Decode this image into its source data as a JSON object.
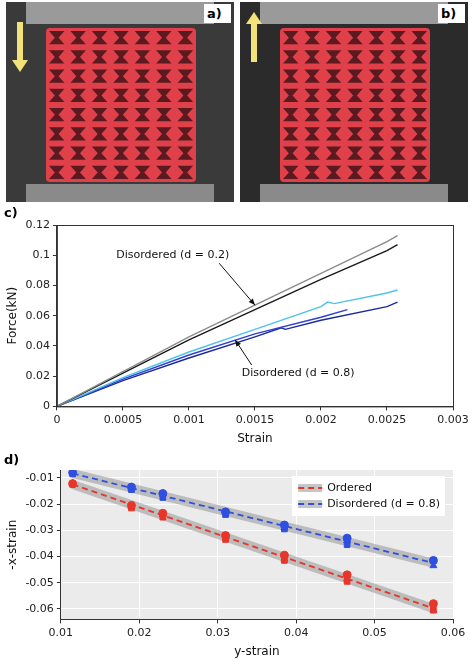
{
  "panels": [
    {
      "label": "a)",
      "arrow": "down"
    },
    {
      "label": "b)",
      "arrow": "up"
    }
  ],
  "chart_data": [
    {
      "type": "line",
      "panel_label": "c)",
      "x_label": "Strain",
      "y_label": "Force(kN)",
      "xlim": [
        0,
        0.003
      ],
      "xticks": [
        0,
        0.0005,
        0.001,
        0.0015,
        0.002,
        0.0025,
        0.003
      ],
      "ylim": [
        0,
        0.12
      ],
      "yticks": [
        0,
        0.02,
        0.04,
        0.06,
        0.08,
        0.1,
        0.12
      ],
      "grid": false,
      "series": [
        {
          "color": "#8c8c8c",
          "x": [
            0,
            0.0005,
            0.001,
            0.0015,
            0.002,
            0.0025,
            0.00258
          ],
          "values": [
            0,
            0.023,
            0.046,
            0.067,
            0.088,
            0.109,
            0.113
          ]
        },
        {
          "color": "#1a1a1a",
          "x": [
            0,
            0.0005,
            0.001,
            0.0015,
            0.002,
            0.0025,
            0.00258
          ],
          "values": [
            0,
            0.022,
            0.044,
            0.064,
            0.084,
            0.103,
            0.107
          ]
        },
        {
          "color": "#4fc3e8",
          "x": [
            0,
            0.0005,
            0.001,
            0.0015,
            0.002,
            0.00205,
            0.0021,
            0.0025,
            0.00258
          ],
          "values": [
            0,
            0.019,
            0.036,
            0.051,
            0.066,
            0.069,
            0.068,
            0.075,
            0.077
          ]
        },
        {
          "color": "#2f3fd0",
          "x": [
            0,
            0.0005,
            0.001,
            0.0015,
            0.002,
            0.0022
          ],
          "values": [
            0,
            0.018,
            0.034,
            0.048,
            0.059,
            0.064
          ]
        },
        {
          "color": "#1a2a9a",
          "x": [
            0,
            0.0005,
            0.001,
            0.0015,
            0.0017,
            0.00173,
            0.002,
            0.0025,
            0.00258
          ],
          "values": [
            0,
            0.017,
            0.032,
            0.046,
            0.052,
            0.051,
            0.057,
            0.066,
            0.069
          ]
        }
      ],
      "annotations": [
        {
          "text": "Disordered (d = 0.2)",
          "x": 0.00045,
          "y": 0.1,
          "arrow_x": 0.0015,
          "arrow_y": 0.067
        },
        {
          "text": "Disordered (d = 0.8)",
          "x": 0.0014,
          "y": 0.022,
          "arrow_x": 0.00135,
          "arrow_y": 0.044
        }
      ]
    },
    {
      "type": "scatter",
      "panel_label": "d)",
      "x_label": "y-strain",
      "y_label": "-x-strain",
      "xlim": [
        0.01,
        0.06
      ],
      "xticks": [
        0.01,
        0.02,
        0.03,
        0.04,
        0.05,
        0.06
      ],
      "ylim": [
        -0.064,
        -0.007
      ],
      "yticks": [
        -0.06,
        -0.05,
        -0.04,
        -0.03,
        -0.02,
        -0.01
      ],
      "grid": true,
      "legend": "top-right",
      "x": [
        0.0115,
        0.019,
        0.023,
        0.031,
        0.0385,
        0.0465,
        0.0575
      ],
      "series": [
        {
          "name": "Ordered",
          "color": "#e8352a",
          "type": "line",
          "line_style": "dashed",
          "x": [
            0.0115,
            0.0575
          ],
          "values": [
            -0.0125,
            -0.0598
          ]
        },
        {
          "name": "Disordered (d = 0.8)",
          "color": "#2f4fe0",
          "type": "line",
          "line_style": "dashed",
          "x": [
            0.0115,
            0.0575
          ],
          "values": [
            -0.0083,
            -0.0425
          ]
        },
        {
          "color": "#e8352a",
          "marker": "circle",
          "values": [
            -0.0122,
            -0.0205,
            -0.0235,
            -0.032,
            -0.0395,
            -0.047,
            -0.058
          ]
        },
        {
          "color": "#e8352a",
          "marker": "square",
          "values": [
            -0.0125,
            -0.0215,
            -0.025,
            -0.0335,
            -0.0415,
            -0.0495,
            -0.0605
          ]
        },
        {
          "color": "#e8352a",
          "marker": "triangle",
          "values": [
            -0.012,
            -0.021,
            -0.024,
            -0.033,
            -0.041,
            -0.0485,
            -0.0605
          ]
        },
        {
          "color": "#2f4fe0",
          "marker": "circle",
          "values": [
            -0.008,
            -0.0135,
            -0.016,
            -0.023,
            -0.028,
            -0.033,
            -0.0415
          ]
        },
        {
          "color": "#2f4fe0",
          "marker": "square",
          "values": [
            -0.0085,
            -0.0145,
            -0.0175,
            -0.024,
            -0.0295,
            -0.0355,
            -0.0415
          ]
        },
        {
          "color": "#2f4fe0",
          "marker": "triangle",
          "values": [
            -0.0075,
            -0.014,
            -0.016,
            -0.023,
            -0.029,
            -0.034,
            -0.0435
          ]
        }
      ]
    }
  ]
}
